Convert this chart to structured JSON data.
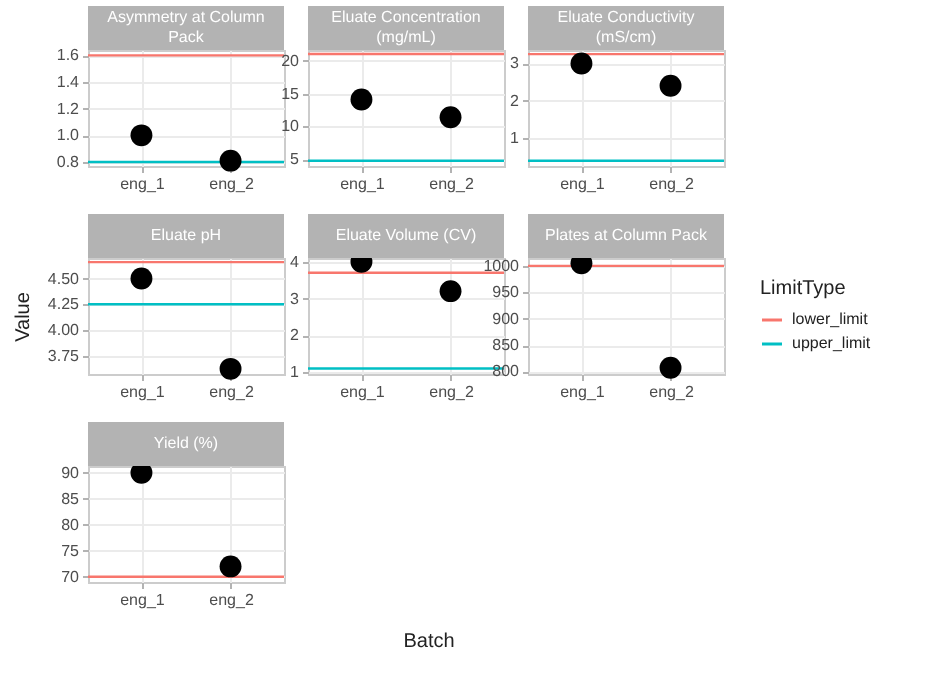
{
  "chart_data": [
    {
      "type": "scatter",
      "title": "Asymmetry at Column Pack",
      "categories": [
        "eng_1",
        "eng_2"
      ],
      "values": [
        1.0,
        0.81
      ],
      "color": "#000000",
      "marker": "circle",
      "grid": true,
      "ylim": [
        0.77,
        1.64
      ],
      "yticks": [
        0.8,
        {
          "value": 1,
          "label": "1.0"
        },
        1.2,
        1.4,
        1.6
      ],
      "ref_lines": [
        {
          "axis": "y",
          "value": 1.6,
          "color": "#f8766d"
        },
        {
          "axis": "y",
          "value": 0.8,
          "color": "#00bfc4"
        }
      ]
    },
    {
      "type": "scatter",
      "title": "Eluate Concentration (mg/mL)",
      "categories": [
        "eng_1",
        "eng_2"
      ],
      "values": [
        14.1,
        11.4
      ],
      "color": "#000000",
      "marker": "circle",
      "grid": true,
      "ylim": [
        4.0,
        21.6
      ],
      "yticks": [
        5,
        10,
        15,
        20
      ],
      "ref_lines": [
        {
          "axis": "y",
          "value": 21,
          "color": "#f8766d"
        },
        {
          "axis": "y",
          "value": 4.8,
          "color": "#00bfc4"
        }
      ]
    },
    {
      "type": "scatter",
      "title": "Eluate Conductivity (mS/cm)",
      "categories": [
        "eng_1",
        "eng_2"
      ],
      "values": [
        3.0,
        2.4
      ],
      "color": "#000000",
      "marker": "circle",
      "grid": true,
      "ylim": [
        0.25,
        3.36
      ],
      "yticks": [
        1,
        2,
        3
      ],
      "ref_lines": [
        {
          "axis": "y",
          "value": 3.25,
          "color": "#f8766d"
        },
        {
          "axis": "y",
          "value": 0.39,
          "color": "#00bfc4"
        }
      ]
    },
    {
      "type": "scatter",
      "title": "Eluate pH",
      "ylabel": "Value",
      "categories": [
        "eng_1",
        "eng_2"
      ],
      "values": [
        4.5,
        3.62
      ],
      "color": "#000000",
      "marker": "circle",
      "grid": true,
      "ylim": [
        3.57,
        4.7
      ],
      "yticks": [
        3.75,
        {
          "value": 4,
          "label": "4.00"
        },
        4.25,
        {
          "value": 4.5,
          "label": "4.50"
        }
      ],
      "ref_lines": [
        {
          "axis": "y",
          "value": 4.66,
          "color": "#f8766d"
        },
        {
          "axis": "y",
          "value": 4.25,
          "color": "#00bfc4"
        }
      ]
    },
    {
      "type": "scatter",
      "title": "Eluate Volume (CV)",
      "categories": [
        "eng_1",
        "eng_2"
      ],
      "values": [
        4.0,
        3.2
      ],
      "color": "#000000",
      "marker": "circle",
      "grid": true,
      "ylim": [
        0.95,
        4.1
      ],
      "yticks": [
        1,
        2,
        3,
        4
      ],
      "legend": "right",
      "legend_title": "LimitType",
      "ref_lines": [
        {
          "axis": "y",
          "value": 3.7,
          "label": "lower_limit",
          "color": "#f8766d"
        },
        {
          "axis": "y",
          "value": 1.1,
          "label": "upper_limit",
          "color": "#00bfc4"
        }
      ]
    },
    {
      "type": "scatter",
      "title": "Plates at Column Pack",
      "categories": [
        "eng_1",
        "eng_2"
      ],
      "values": [
        1005,
        807
      ],
      "color": "#000000",
      "marker": "circle",
      "grid": true,
      "ylim": [
        795,
        1015
      ],
      "yticks": [
        800,
        850,
        900,
        950,
        1000
      ],
      "ref_lines": [
        {
          "axis": "y",
          "value": 1000,
          "color": "#f8766d"
        }
      ]
    },
    {
      "type": "scatter",
      "title": "Yield (%)",
      "xlabel": "Batch",
      "categories": [
        "eng_1",
        "eng_2"
      ],
      "values": [
        90,
        72
      ],
      "color": "#000000",
      "marker": "circle",
      "grid": true,
      "ylim": [
        69,
        91.3
      ],
      "yticks": [
        70,
        75,
        80,
        85,
        90
      ],
      "ref_lines": [
        {
          "axis": "y",
          "value": 70,
          "color": "#f8766d"
        }
      ]
    }
  ]
}
